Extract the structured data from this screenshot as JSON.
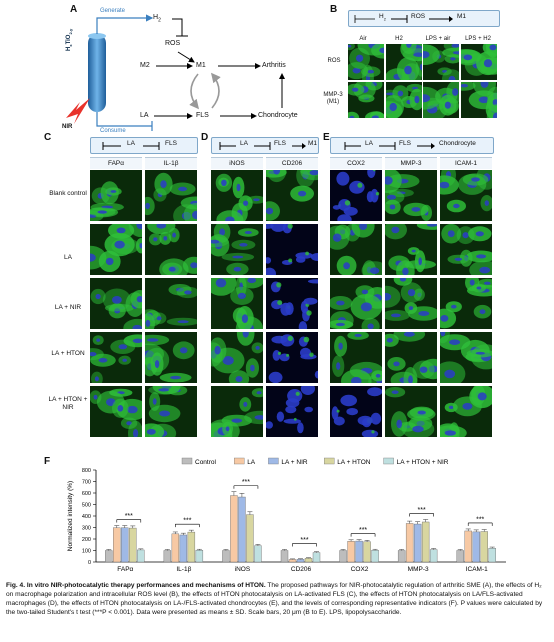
{
  "panelA": {
    "label": "A",
    "material": "H",
    "material_sub": "x",
    "material_rest": "TiO",
    "material_sub2": "2-y",
    "nir": "NIR",
    "generate": "Generate",
    "consume": "Consume",
    "h2": "H",
    "h2_sub": "2",
    "ros": "ROS",
    "m2": "M2",
    "m1": "M1",
    "la": "LA",
    "fls": "FLS",
    "arthritis": "Arthritis",
    "chondrocyte": "Chondrocyte"
  },
  "panelB": {
    "label": "B",
    "header": [
      "H",
      "2",
      "ROS",
      "M1"
    ],
    "columns": [
      "Air",
      "H2",
      "LPS + air",
      "LPS + H2"
    ],
    "rows": [
      "ROS",
      "MMP-3 (M1)"
    ]
  },
  "panelC": {
    "label": "C",
    "header": [
      "LA",
      "FLS"
    ],
    "columns": [
      "FAPα",
      "IL-1β"
    ]
  },
  "panelD": {
    "label": "D",
    "header": [
      "LA",
      "FLS",
      "M1"
    ],
    "columns": [
      "iNOS",
      "CD206"
    ]
  },
  "panelE": {
    "label": "E",
    "header": [
      "LA",
      "FLS",
      "Chondrocyte"
    ],
    "columns": [
      "COX2",
      "MMP-3",
      "ICAM-1"
    ]
  },
  "row_labels": [
    "Blank control",
    "LA",
    "LA + NIR",
    "LA + HTON",
    "LA + HTON + NIR"
  ],
  "panelF": {
    "label": "F"
  },
  "chart_data": {
    "type": "bar",
    "ylabel": "Normalized intensity (%)",
    "ylim": [
      0,
      800
    ],
    "yticks": [
      0,
      100,
      200,
      300,
      400,
      500,
      600,
      700,
      800
    ],
    "categories": [
      "FAPα",
      "IL-1β",
      "iNOS",
      "CD206",
      "COX2",
      "MMP-3",
      "ICAM-1"
    ],
    "series": [
      {
        "name": "Control",
        "color": "#bdbdbd",
        "values": [
          100,
          100,
          100,
          100,
          100,
          100,
          100
        ]
      },
      {
        "name": "LA",
        "color": "#f7c9a4",
        "values": [
          298,
          245,
          578,
          22,
          180,
          335,
          270
        ]
      },
      {
        "name": "LA + NIR",
        "color": "#9fb9e6",
        "values": [
          298,
          235,
          565,
          23,
          182,
          330,
          262
        ]
      },
      {
        "name": "LA + HTON",
        "color": "#d8d6a0",
        "values": [
          295,
          260,
          412,
          32,
          176,
          348,
          265
        ]
      },
      {
        "name": "LA + HTON + NIR",
        "color": "#bfe0e0",
        "values": [
          105,
          102,
          142,
          82,
          102,
          108,
          120
        ]
      }
    ],
    "significance": "***",
    "legend": "top"
  },
  "caption": {
    "title": "Fig. 4. In vitro NIR-photocatalytic therapy performances and mechanisms of HTON.",
    "body": " The proposed pathways for NIR-photocatalytic regulation of arthritic SME (A), the effects of H₂ on macrophage polarization and intracellular ROS level (B), the effects of HTON photocatalysis on LA-activated FLS (C), the effects of HTON photocatalysis on LA/FLS-activated macrophages (D), the effects of HTON photocatalysis on LA-/FLS-activated chondrocytes (E), and the levels of corresponding representative indicators (F). P values were calculated by the two-tailed Student's t test (***P < 0.001). Data were presented as means ± SD. Scale bars, 20 μm (B to E). LPS, lipopolysaccharide."
  },
  "colors": {
    "header_fill": "#e8f2fb",
    "header_border": "#7fa7c9",
    "rod": "#3a7fbf",
    "nir_bolt": "#e8322b",
    "cell_green": "#2fbf3a",
    "nucleus_blue": "#2a3cc8"
  }
}
